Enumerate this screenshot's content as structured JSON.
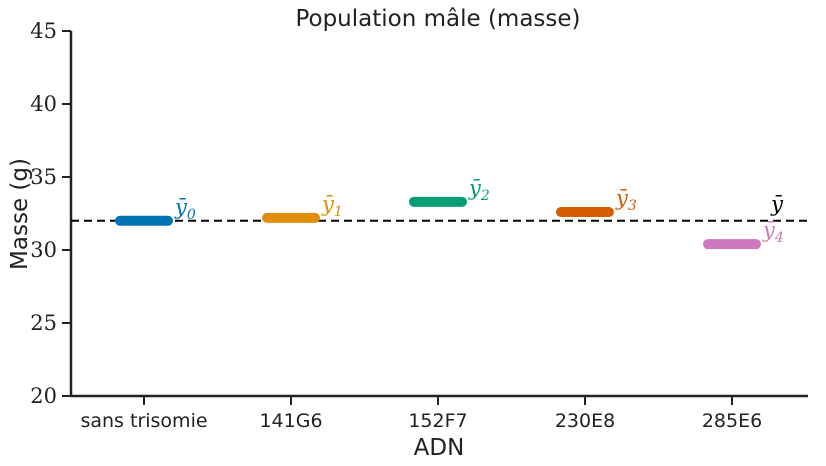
{
  "chart_data": {
    "type": "scatter",
    "title": "Population mâle (masse)",
    "xlabel": "ADN",
    "ylabel": "Masse (g)",
    "ylim": [
      20,
      45
    ],
    "yticks": [
      20,
      25,
      30,
      35,
      40,
      45
    ],
    "categories": [
      "sans trisomie",
      "141G6",
      "152F7",
      "230E8",
      "285E6"
    ],
    "values": [
      32.0,
      32.2,
      33.3,
      32.6,
      30.4
    ],
    "colors": [
      "#0173b2",
      "#de8f05",
      "#029e73",
      "#d55e00",
      "#cc78bc"
    ],
    "mean_labels": [
      {
        "base": "ȳ",
        "sub": "0"
      },
      {
        "base": "ȳ",
        "sub": "1"
      },
      {
        "base": "ȳ",
        "sub": "2"
      },
      {
        "base": "ȳ",
        "sub": "3"
      },
      {
        "base": "ȳ",
        "sub": "4"
      }
    ],
    "overall_mean": {
      "value": 32.0,
      "label": "ȳ",
      "color": "#000000",
      "style": "dashed"
    },
    "grid": false
  }
}
